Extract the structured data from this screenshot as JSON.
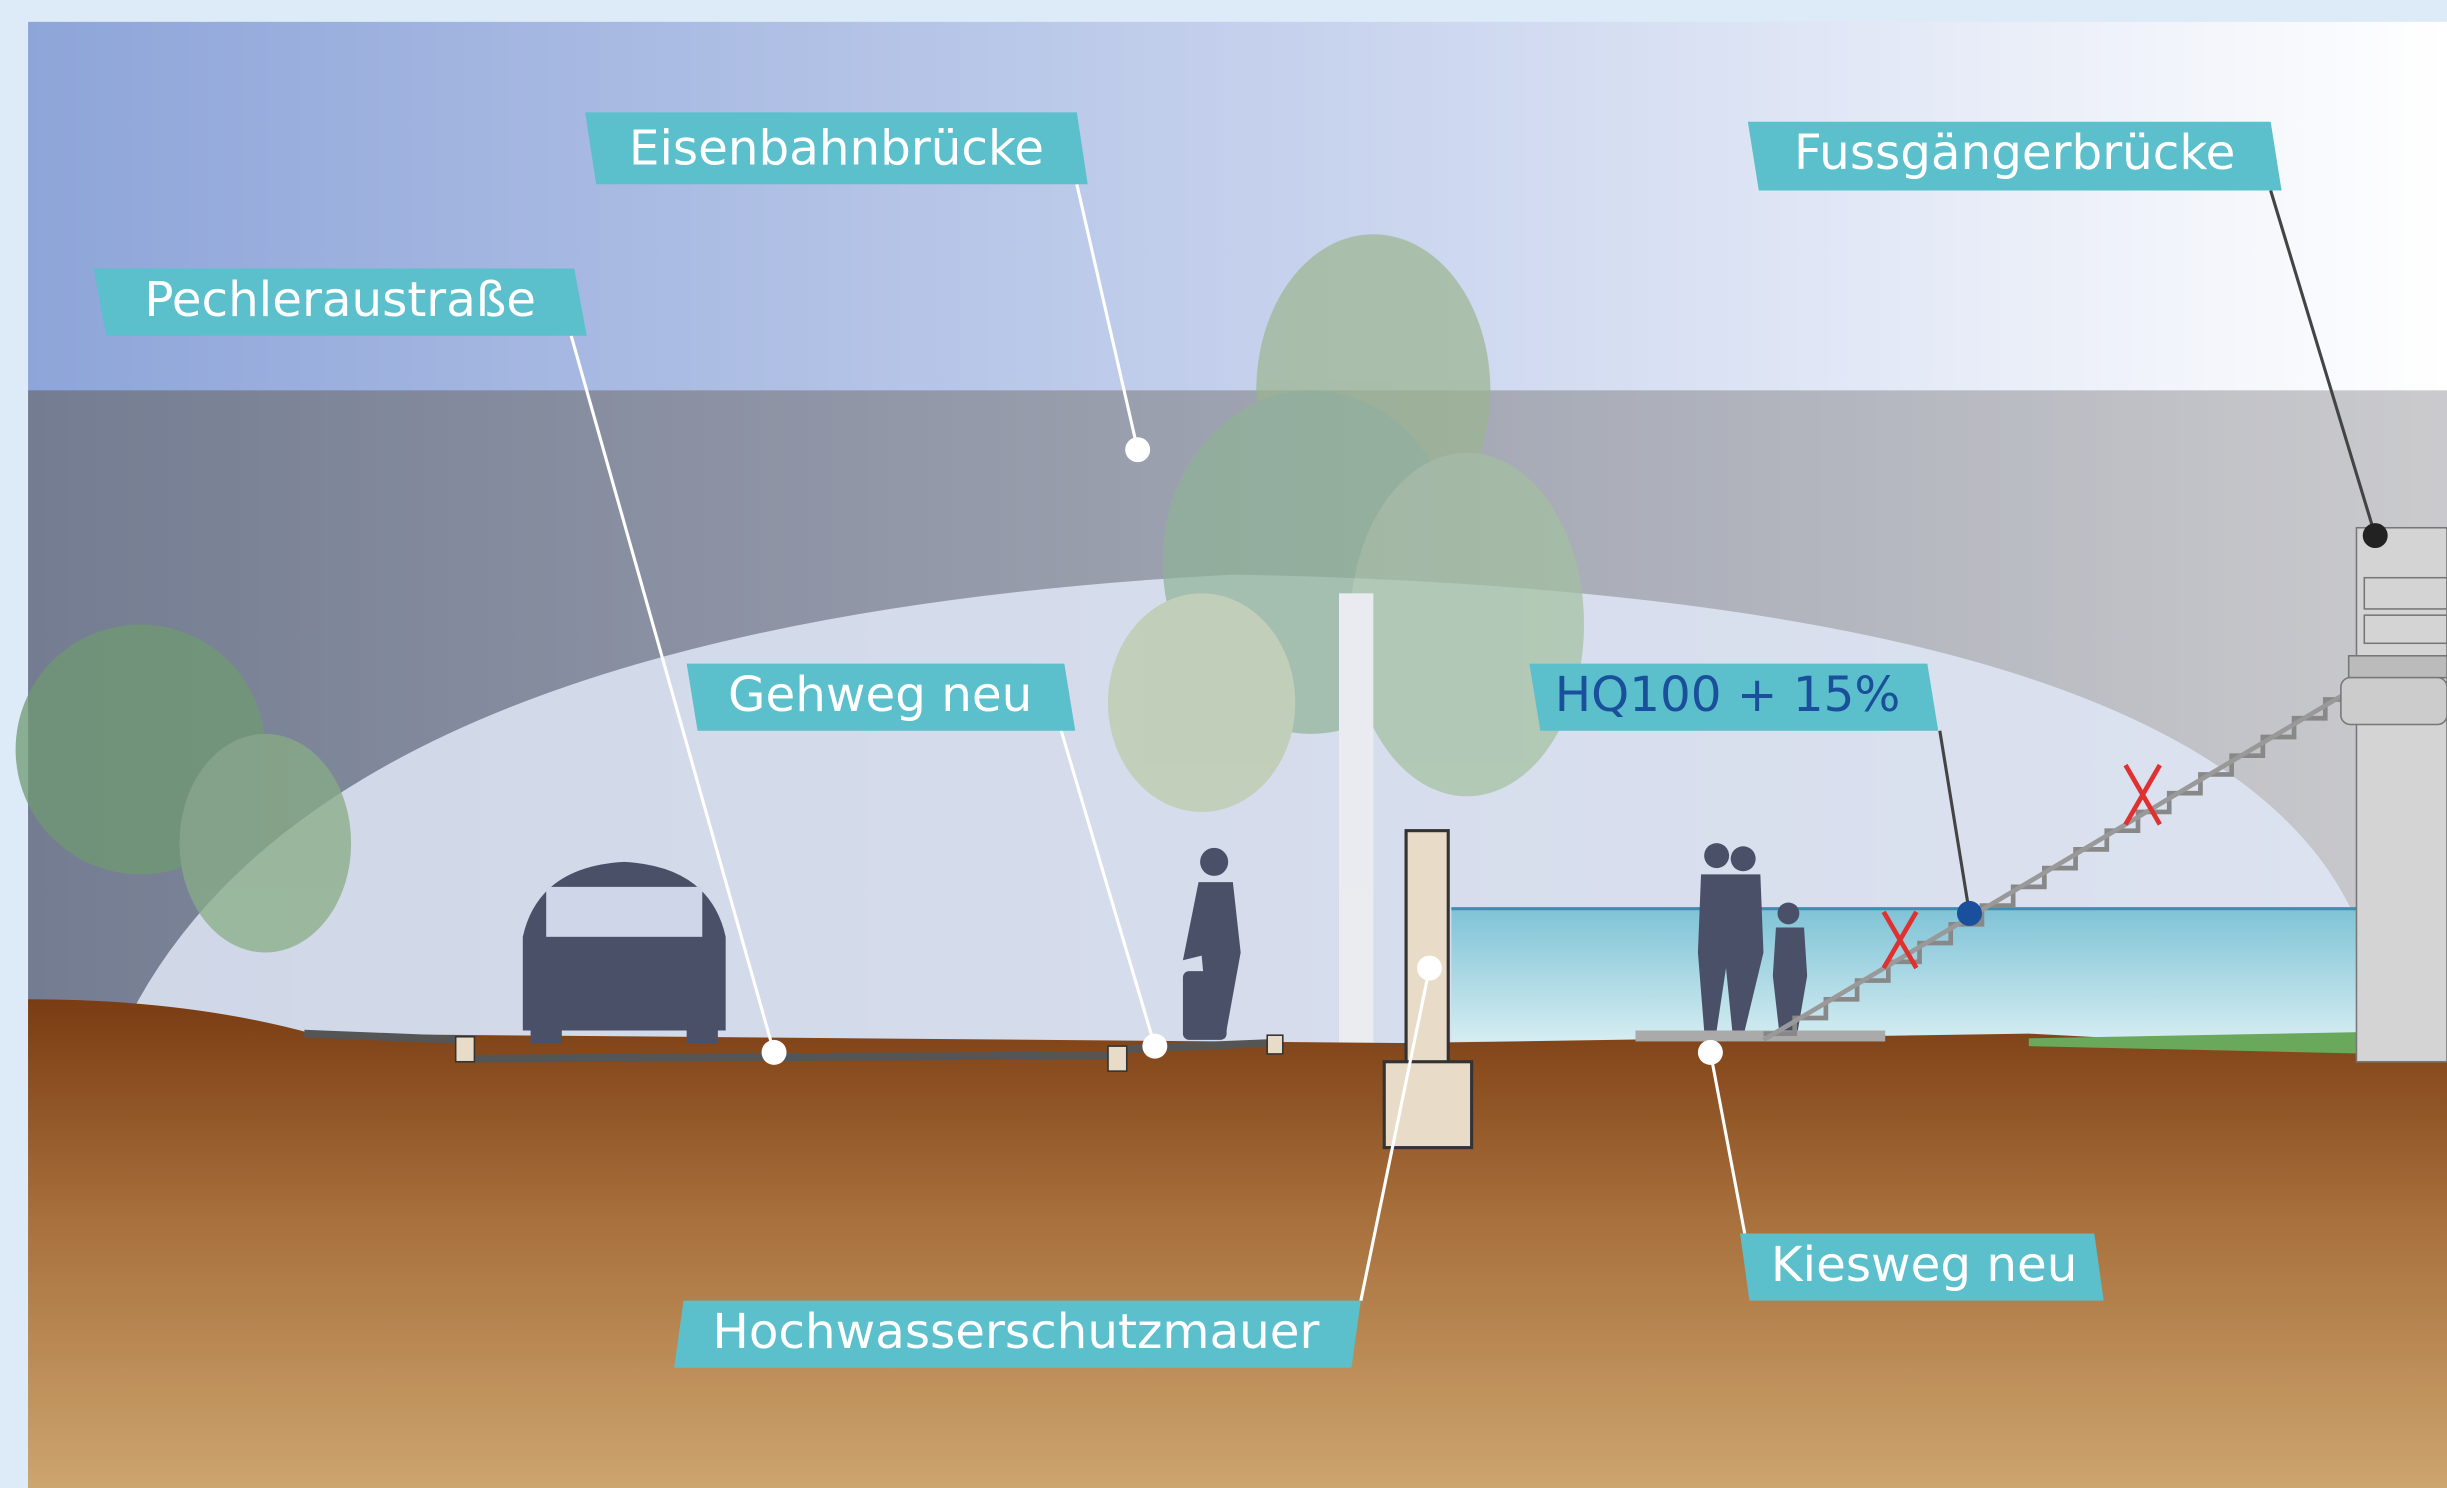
{
  "labels": [
    "Eisenbahnbrücke",
    "Pechleraustraße",
    "Gehweg neu",
    "HQ100 + 15%",
    "Fussgängerbrücke",
    "Hochwasserschutzmauer",
    "Kiesweg neu"
  ]
}
